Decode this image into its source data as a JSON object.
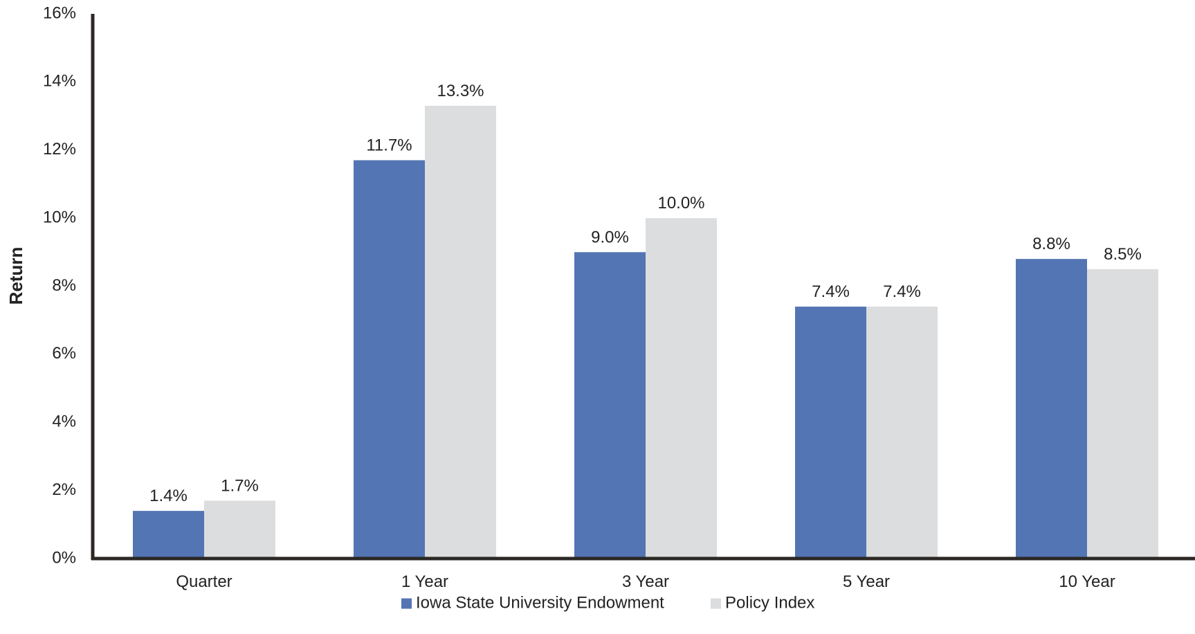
{
  "chart_data": {
    "type": "bar",
    "categories": [
      "Quarter",
      "1 Year",
      "3 Year",
      "5 Year",
      "10 Year"
    ],
    "series": [
      {
        "name": "Iowa State University Endowment",
        "values": [
          1.4,
          11.7,
          9.0,
          7.4,
          8.8
        ],
        "labels": [
          "1.4%",
          "11.7%",
          "9.0%",
          "7.4%",
          "8.8%"
        ],
        "color": "#5375B3"
      },
      {
        "name": "Policy Index",
        "values": [
          1.7,
          13.3,
          10.0,
          7.4,
          8.5
        ],
        "labels": [
          "1.7%",
          "13.3%",
          "10.0%",
          "7.4%",
          "8.5%"
        ],
        "color": "#DCDDDF"
      }
    ],
    "title": "",
    "xlabel": "",
    "ylabel": "Return",
    "ylim": [
      0,
      16
    ],
    "yticks": [
      0,
      2,
      4,
      6,
      8,
      10,
      12,
      14,
      16
    ],
    "ytick_labels": [
      "0%",
      "2%",
      "4%",
      "6%",
      "8%",
      "10%",
      "12%",
      "14%",
      "16%"
    ],
    "grid": false,
    "legend_position": "bottom",
    "axis_color": "#2B2826"
  }
}
